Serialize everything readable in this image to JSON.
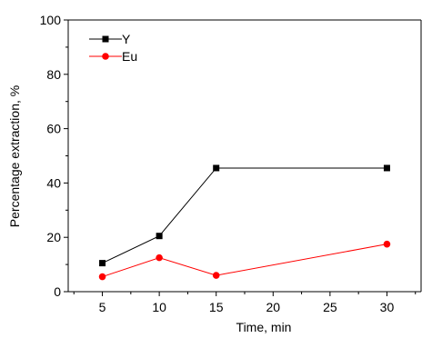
{
  "chart_data": {
    "type": "line",
    "xlabel": "Time, min",
    "ylabel": "Percentage extraction, %",
    "xlim": [
      2,
      33
    ],
    "ylim": [
      0,
      100
    ],
    "x_ticks": [
      5,
      10,
      15,
      20,
      25,
      30
    ],
    "y_ticks": [
      0,
      20,
      40,
      60,
      80,
      100
    ],
    "grid": false,
    "legend_position": "top-left",
    "x": [
      5,
      10,
      15,
      30
    ],
    "series": [
      {
        "name": "Y",
        "values": [
          10.5,
          20.5,
          45.5,
          45.5
        ],
        "color": "#000000",
        "marker": "square"
      },
      {
        "name": "Eu",
        "values": [
          5.5,
          12.5,
          6,
          17.5
        ],
        "color": "#ff0000",
        "marker": "circle"
      }
    ]
  }
}
